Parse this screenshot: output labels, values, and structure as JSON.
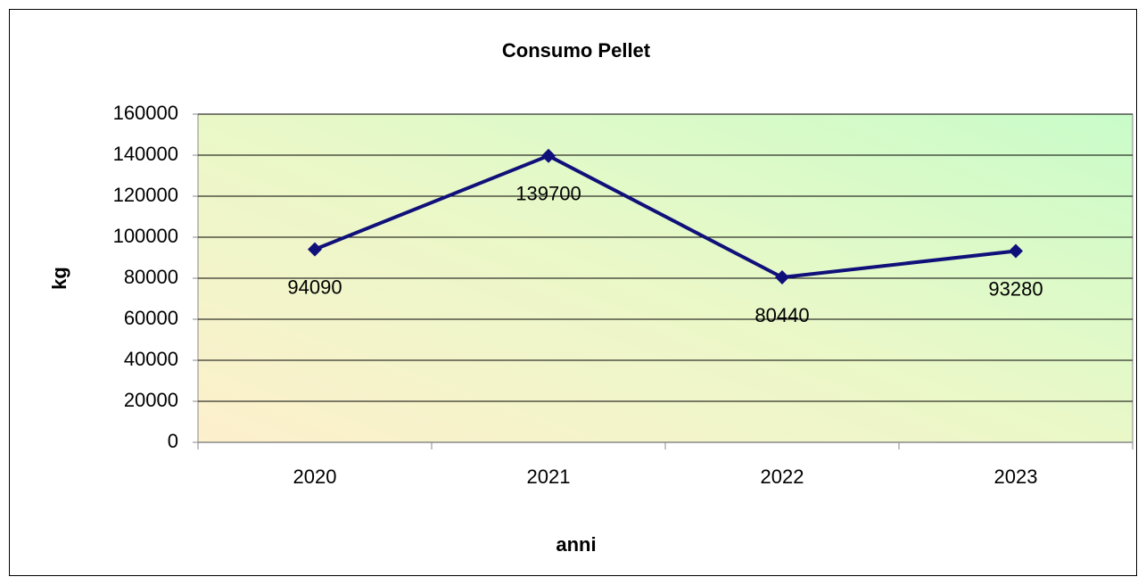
{
  "chart_data": {
    "type": "line",
    "title": "Consumo Pellet",
    "x_label": "anni",
    "y_label": "kg",
    "categories": [
      "2020",
      "2021",
      "2022",
      "2023"
    ],
    "series": [
      {
        "name": "Consumo Pellet",
        "color": "#10107a",
        "values": [
          94090,
          139700,
          80440,
          93280
        ]
      }
    ],
    "ylim": [
      0,
      160000
    ],
    "yticks": [
      0,
      20000,
      40000,
      60000,
      80000,
      100000,
      120000,
      140000,
      160000
    ],
    "grid": true,
    "legend": false,
    "data_labels": true
  }
}
